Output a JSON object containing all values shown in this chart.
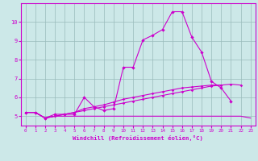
{
  "x": [
    0,
    1,
    2,
    3,
    4,
    5,
    6,
    7,
    8,
    9,
    10,
    11,
    12,
    13,
    14,
    15,
    16,
    17,
    18,
    19,
    20,
    21,
    22,
    23
  ],
  "line_main": [
    5.2,
    5.2,
    4.9,
    5.1,
    5.1,
    5.1,
    6.0,
    5.5,
    5.3,
    5.4,
    7.6,
    7.6,
    9.05,
    9.3,
    9.6,
    10.55,
    10.55,
    9.2,
    8.4,
    6.85,
    6.5,
    5.8,
    null,
    null
  ],
  "line_diag1": [
    5.2,
    5.2,
    4.9,
    5.0,
    5.1,
    5.2,
    5.3,
    5.4,
    5.5,
    5.6,
    5.7,
    5.8,
    5.9,
    6.0,
    6.1,
    6.2,
    6.3,
    6.4,
    6.5,
    6.6,
    6.65,
    6.7,
    6.65,
    null
  ],
  "line_diag2": [
    5.2,
    5.2,
    4.9,
    5.0,
    5.1,
    5.2,
    5.4,
    5.5,
    5.6,
    5.75,
    5.9,
    6.0,
    6.1,
    6.2,
    6.3,
    6.4,
    6.5,
    6.55,
    6.6,
    6.65,
    6.65,
    null,
    null,
    null
  ],
  "line_flat": [
    5.2,
    5.2,
    4.9,
    5.0,
    5.0,
    5.0,
    5.0,
    5.0,
    5.0,
    5.0,
    5.0,
    5.0,
    5.0,
    5.0,
    5.0,
    5.0,
    5.0,
    5.0,
    5.0,
    5.0,
    5.0,
    5.0,
    5.0,
    4.9
  ],
  "color": "#cc00cc",
  "bg_color": "#cce8e8",
  "grid_color": "#99bbbb",
  "xlabel": "Windchill (Refroidissement éolien,°C)",
  "xlim": [
    -0.5,
    23.5
  ],
  "ylim": [
    4.5,
    11.0
  ],
  "yticks": [
    5,
    6,
    7,
    8,
    9,
    10
  ],
  "xticks": [
    0,
    1,
    2,
    3,
    4,
    5,
    6,
    7,
    8,
    9,
    10,
    11,
    12,
    13,
    14,
    15,
    16,
    17,
    18,
    19,
    20,
    21,
    22,
    23
  ]
}
